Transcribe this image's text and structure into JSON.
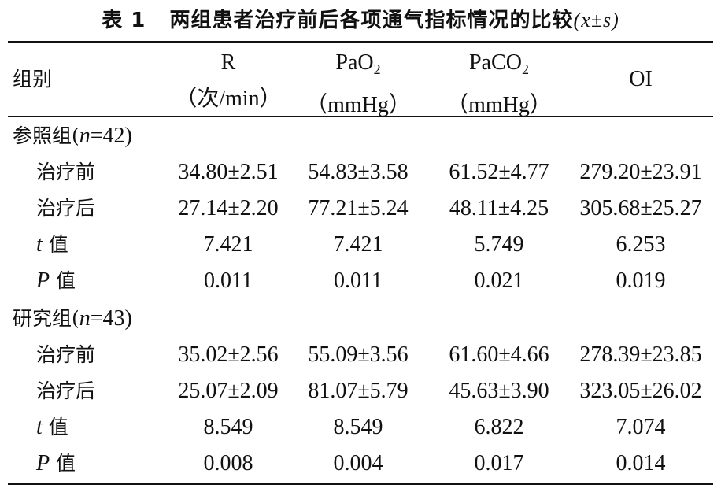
{
  "table": {
    "title_prefix": "表 1",
    "title_text": "两组患者治疗前后各项通气指标情况的比较",
    "title_stat_open": "(",
    "title_stat_mean": "x",
    "title_stat_pm": "±",
    "title_stat_sd": "s",
    "title_stat_close": ")",
    "header": {
      "group_label": "组别",
      "col1_name": "R",
      "col1_unit": "（次/min）",
      "col2_name_main": "PaO",
      "col2_name_sub": "2",
      "col2_unit": "（mmHg）",
      "col3_name_main": "PaCO",
      "col3_name_sub": "2",
      "col3_unit": "（mmHg）",
      "col4_name": "OI"
    },
    "groups": [
      {
        "name": "参照组(",
        "n_symbol": "n",
        "n_value": "=42)",
        "rows": [
          {
            "label": "治疗前",
            "label_italic": "",
            "label_rest": "",
            "values": [
              "34.80±2.51",
              "54.83±3.58",
              "61.52±4.77",
              "279.20±23.91"
            ]
          },
          {
            "label": "治疗后",
            "label_italic": "",
            "label_rest": "",
            "values": [
              "27.14±2.20",
              "77.21±5.24",
              "48.11±4.25",
              "305.68±25.27"
            ]
          },
          {
            "label": "",
            "label_italic": "t",
            "label_rest": " 值",
            "values": [
              "7.421",
              "7.421",
              "5.749",
              "6.253"
            ]
          },
          {
            "label": "",
            "label_italic": "P",
            "label_rest": " 值",
            "values": [
              "0.011",
              "0.011",
              "0.021",
              "0.019"
            ]
          }
        ]
      },
      {
        "name": "研究组(",
        "n_symbol": "n",
        "n_value": "=43)",
        "rows": [
          {
            "label": "治疗前",
            "label_italic": "",
            "label_rest": "",
            "values": [
              "35.02±2.56",
              "55.09±3.56",
              "61.60±4.66",
              "278.39±23.85"
            ]
          },
          {
            "label": "治疗后",
            "label_italic": "",
            "label_rest": "",
            "values": [
              "25.07±2.09",
              "81.07±5.79",
              "45.63±3.90",
              "323.05±26.02"
            ]
          },
          {
            "label": "",
            "label_italic": "t",
            "label_rest": " 值",
            "values": [
              "8.549",
              "8.549",
              "6.822",
              "7.074"
            ]
          },
          {
            "label": "",
            "label_italic": "P",
            "label_rest": " 值",
            "values": [
              "0.008",
              "0.004",
              "0.017",
              "0.014"
            ]
          }
        ]
      }
    ]
  }
}
